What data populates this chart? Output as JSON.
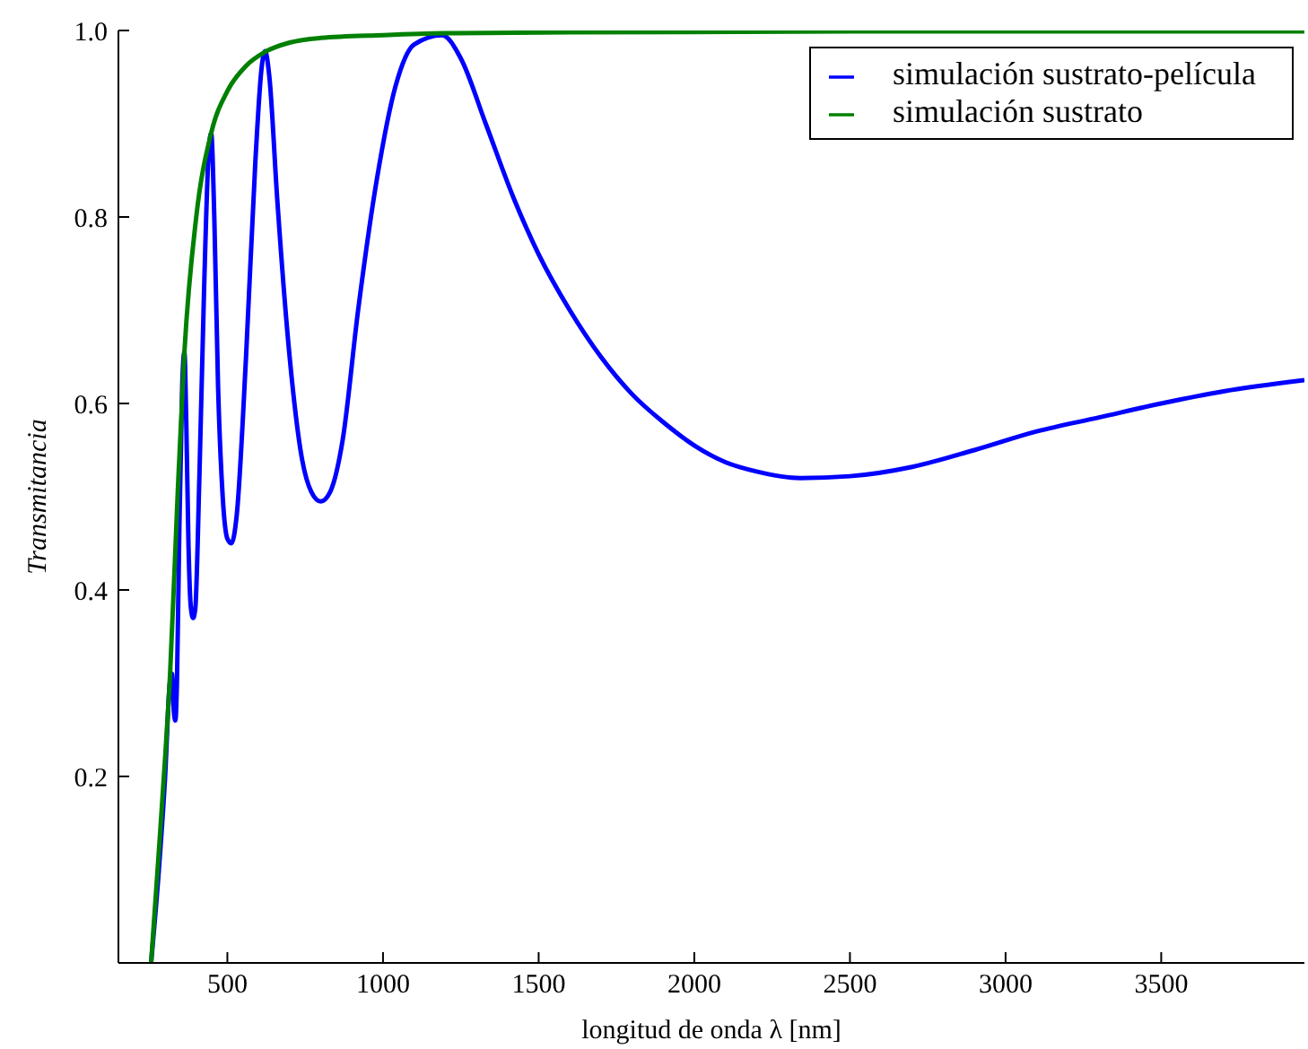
{
  "chart_data": {
    "type": "line",
    "xlabel": "longitud de onda λ [nm]",
    "ylabel": "Transmitancia",
    "xlim": [
      150,
      3960
    ],
    "ylim": [
      0,
      1
    ],
    "xticks": [
      500,
      1000,
      1500,
      2000,
      2500,
      3000,
      3500
    ],
    "yticks": [
      {
        "value": 0.2,
        "label": "0.2"
      },
      {
        "value": 0.4,
        "label": "0.4"
      },
      {
        "value": 0.6,
        "label": "0.6"
      },
      {
        "value": 0.8,
        "label": "0.8"
      },
      {
        "value": 1,
        "label": "1.0"
      }
    ],
    "grid": false,
    "legend": "top right",
    "marker": "none",
    "line_style": "solid",
    "series": [
      {
        "name": "simulación sustrato-película",
        "color": "#0000ff",
        "x": [
          255,
          280,
          300,
          315,
          322,
          328,
          333,
          338,
          345,
          355,
          362,
          368,
          375,
          383,
          390,
          397,
          410,
          425,
          440,
          448,
          458,
          470,
          485,
          500,
          513,
          530,
          560,
          590,
          610,
          621,
          635,
          660,
          700,
          740,
          770,
          800,
          830,
          870,
          920,
          980,
          1040,
          1100,
          1190,
          1250,
          1330,
          1420,
          1500,
          1600,
          1700,
          1800,
          1900,
          2000,
          2100,
          2200,
          2340,
          2500,
          2700,
          2900,
          3100,
          3300,
          3500,
          3700,
          3960
        ],
        "values": [
          0,
          0.1,
          0.2,
          0.3,
          0.31,
          0.27,
          0.26,
          0.3,
          0.45,
          0.62,
          0.655,
          0.58,
          0.45,
          0.38,
          0.37,
          0.38,
          0.52,
          0.72,
          0.87,
          0.89,
          0.8,
          0.62,
          0.5,
          0.455,
          0.45,
          0.48,
          0.65,
          0.86,
          0.96,
          0.978,
          0.95,
          0.82,
          0.65,
          0.54,
          0.505,
          0.495,
          0.505,
          0.56,
          0.7,
          0.84,
          0.94,
          0.985,
          0.995,
          0.97,
          0.9,
          0.82,
          0.76,
          0.7,
          0.65,
          0.61,
          0.58,
          0.555,
          0.537,
          0.527,
          0.52,
          0.522,
          0.532,
          0.55,
          0.57,
          0.585,
          0.6,
          0.613,
          0.625
        ]
      },
      {
        "name": "simulación sustrato",
        "color": "#008000",
        "x": [
          255,
          280,
          300,
          316,
          340,
          362,
          400,
          448,
          500,
          560,
          621,
          700,
          800,
          1000,
          1200,
          1600,
          2500,
          3960
        ],
        "values": [
          0,
          0.12,
          0.22,
          0.31,
          0.5,
          0.655,
          0.8,
          0.89,
          0.935,
          0.962,
          0.977,
          0.987,
          0.992,
          0.995,
          0.997,
          0.998,
          0.999,
          0.999
        ]
      }
    ]
  }
}
